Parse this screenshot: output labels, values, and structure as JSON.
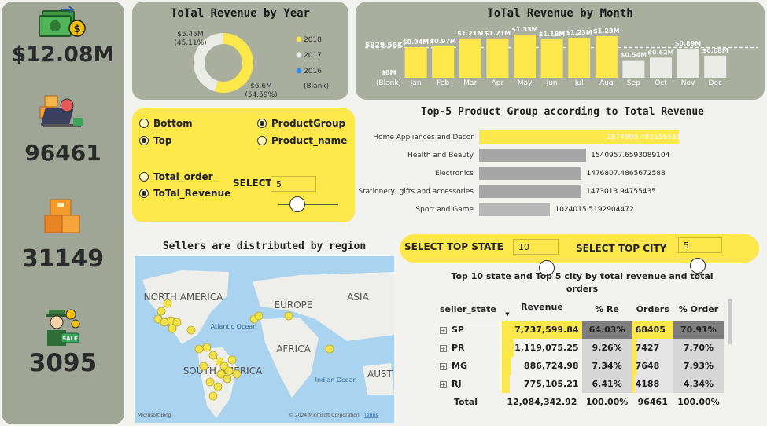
{
  "kpis": {
    "revenue": "$12.08M",
    "orders": "96461",
    "products": "31149",
    "sellers": "3095"
  },
  "revenue_by_year": {
    "title": "ToTal Revenue by Year",
    "label_2017": "$5.45M",
    "pct_2017": "(45.11%)",
    "label_2018": "$6.6M",
    "pct_2018": "(54.59%)",
    "legend": [
      "2018",
      "2017",
      "2016",
      "(Blank)"
    ],
    "colors": {
      "2018": "#fde84c",
      "2017": "#ecece6",
      "2016": "#2b8fe8"
    }
  },
  "revenue_by_month": {
    "title": "ToTal Revenue by Month",
    "ref_label": "$929.56K"
  },
  "filters": {
    "bottom": "Bottom",
    "top": "Top",
    "product_group": "ProductGroup",
    "product_name": "Product_name",
    "total_order": "Total_order_",
    "total_revenue": "ToTal_Revenue",
    "select_label": "SELECT",
    "select_value": "5"
  },
  "top5": {
    "title": "Top-5 Product Group according to Total Revenue"
  },
  "map": {
    "title": "Sellers are distributed by region",
    "labels": {
      "north_america": "NORTH AMERICA",
      "europe": "EUROPE",
      "asia": "ASIA",
      "africa": "AFRICA",
      "south_america": "SOUTH AMERICA",
      "atlantic": "Atlantic Ocean",
      "indian": "Indian Ocean",
      "aust": "AUST"
    },
    "credit_left": "Microsoft Bing",
    "credit_right": "© 2024 Microsoft Corporation",
    "terms": "Terms"
  },
  "state_city": {
    "select_state_label": "SELECT TOP STATE",
    "select_state_value": "10",
    "select_city_label": "SELECT TOP CITY",
    "select_city_value": "5",
    "table_title": "Top 10 state and Top 5 city by total revenue and total orders",
    "columns": [
      "seller_state",
      "Revenue",
      "% Re",
      "Orders",
      "% Order"
    ],
    "rows": [
      {
        "state": "SP",
        "revenue": "7,737,599.84",
        "pct_re": "64.03%",
        "orders": "68405",
        "pct_order": "70.91%"
      },
      {
        "state": "PR",
        "revenue": "1,119,075.25",
        "pct_re": "9.26%",
        "orders": "7427",
        "pct_order": "7.70%"
      },
      {
        "state": "MG",
        "revenue": "886,724.98",
        "pct_re": "7.34%",
        "orders": "7648",
        "pct_order": "7.93%"
      },
      {
        "state": "RJ",
        "revenue": "775,105.21",
        "pct_re": "6.41%",
        "orders": "4188",
        "pct_order": "4.34%"
      }
    ],
    "total": {
      "label": "Total",
      "revenue": "12,084,342.92",
      "pct_re": "100.00%",
      "orders": "96461",
      "pct_order": "100.00%"
    }
  },
  "chart_data": [
    {
      "type": "pie",
      "title": "ToTal Revenue by Year",
      "categories": [
        "2018",
        "2017",
        "2016",
        "(Blank)"
      ],
      "values": [
        6.6,
        5.45,
        0,
        0
      ],
      "percent_labels": [
        "54.59%",
        "45.11%"
      ],
      "legend": "right"
    },
    {
      "type": "bar",
      "title": "ToTal Revenue by Month",
      "categories": [
        "(Blank)",
        "Jan",
        "Feb",
        "Mar",
        "Apr",
        "May",
        "Jun",
        "Jul",
        "Aug",
        "Sep",
        "Oct",
        "Nov",
        "Dec"
      ],
      "values": [
        0,
        0.94,
        0.97,
        1.21,
        1.21,
        1.33,
        1.18,
        1.23,
        1.28,
        0.54,
        0.62,
        0.89,
        0.68
      ],
      "data_labels": [
        "$0M",
        "$0.94M",
        "$0.97M",
        "$1.21M",
        "$1.21M",
        "$1.33M",
        "$1.18M",
        "$1.23M",
        "$1.28M",
        "$0.54M",
        "$0.62M",
        "$0.89M",
        "$0.68M"
      ],
      "highlight_count": 9,
      "reference_line": 0.92956,
      "ylim": [
        0,
        1.4
      ]
    },
    {
      "type": "bar",
      "orientation": "horizontal",
      "title": "Top-5 Product Group according to Total Revenue",
      "categories": [
        "Home Appliances and Decor",
        "Health and Beauty",
        "Electronics",
        "Stationery, gifts and accessories",
        "Sport and Game"
      ],
      "values": [
        2874900.483156681,
        1540957.6593089104,
        1476807.4865672588,
        1473013.94755435,
        1024015.5192904472
      ],
      "data_labels": [
        "2874900.483156681",
        "1540957.6593089104",
        "1476807.4865672588",
        "1473013.94755435",
        "1024015.5192904472"
      ]
    }
  ]
}
